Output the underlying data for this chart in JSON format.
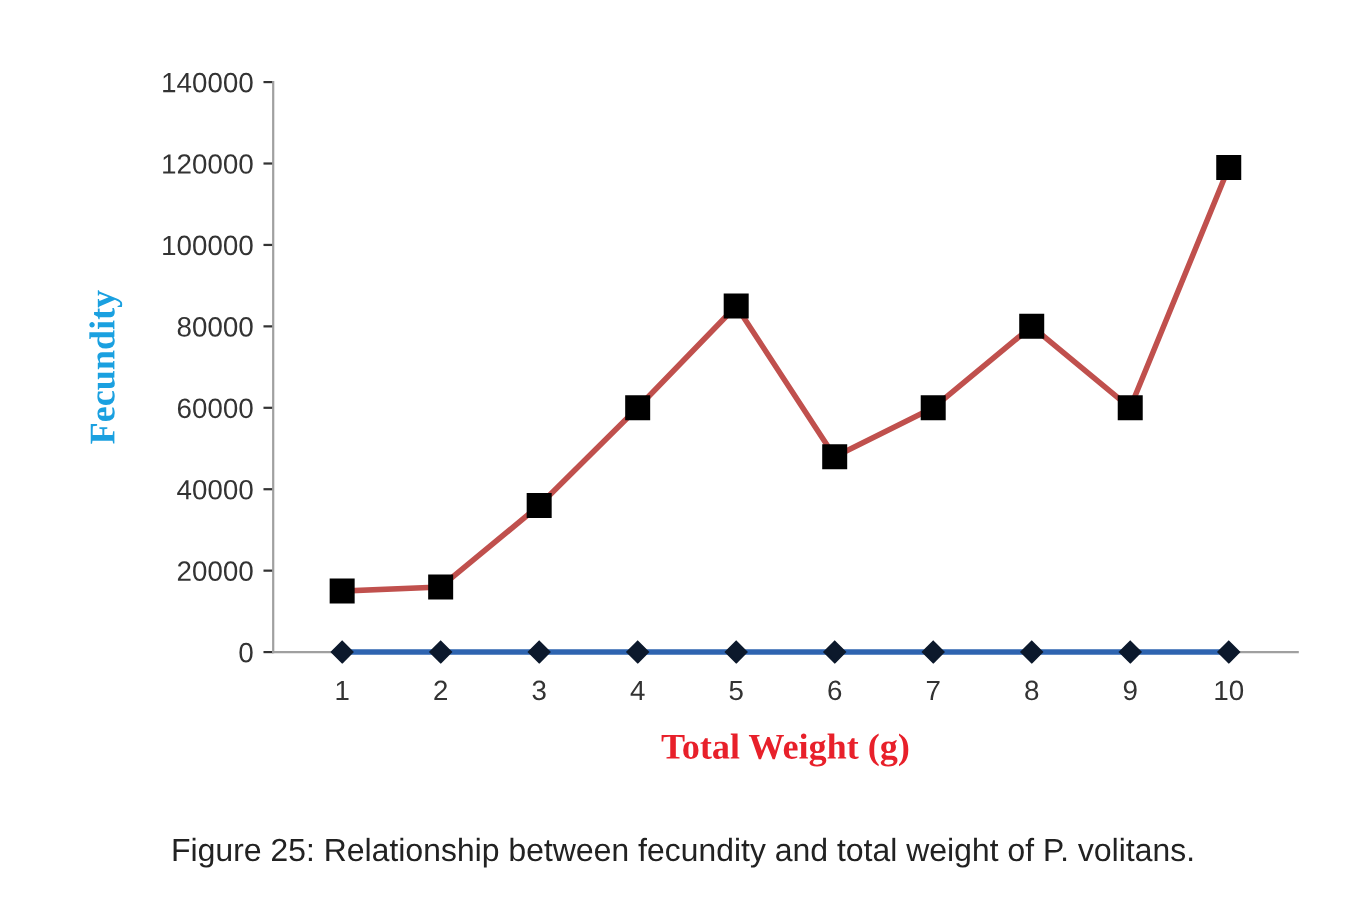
{
  "chart_data": {
    "type": "line",
    "xlabel": "Total Weight (g)",
    "ylabel": "Fecundity",
    "categories": [
      "1",
      "2",
      "3",
      "4",
      "5",
      "6",
      "7",
      "8",
      "9",
      "10"
    ],
    "series": [
      {
        "color": "#c0504d",
        "marker": "square",
        "values": [
          15000,
          16000,
          36000,
          60000,
          85000,
          48000,
          60000,
          80000,
          60000,
          119000
        ]
      },
      {
        "color": "#2e64b0",
        "marker": "diamond",
        "values": [
          0,
          0,
          0,
          0,
          0,
          0,
          0,
          0,
          0,
          0
        ]
      }
    ],
    "ylim": [
      0,
      140000
    ],
    "yticks": [
      0,
      20000,
      40000,
      60000,
      80000,
      100000,
      120000,
      140000
    ],
    "grid": false,
    "legend": false,
    "annotations": [
      "Figure 25: Relationship between fecundity and total weight of P. volitans."
    ]
  }
}
